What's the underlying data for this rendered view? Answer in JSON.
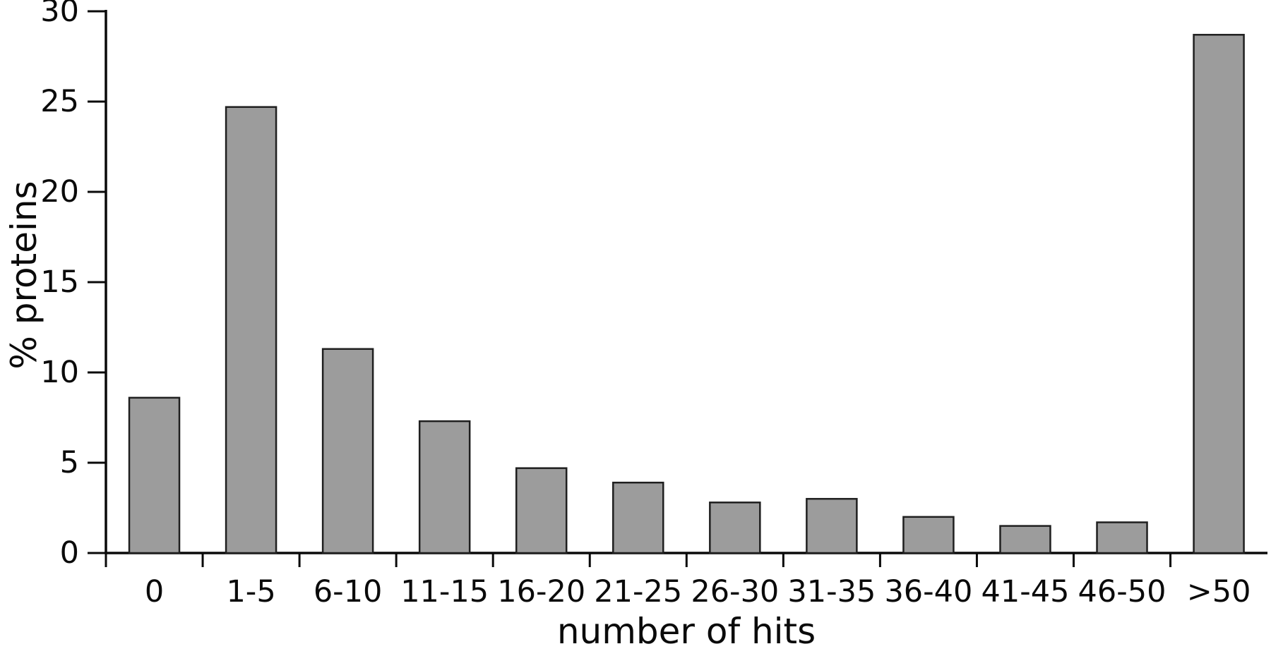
{
  "figure": {
    "background": "#ffffff"
  },
  "chart_data": {
    "type": "bar",
    "title": "",
    "xlabel": "number of hits",
    "ylabel": "% proteins",
    "categories": [
      "0",
      "1-5",
      "6-10",
      "11-15",
      "16-20",
      "21-25",
      "26-30",
      "31-35",
      "36-40",
      "41-45",
      "46-50",
      ">50"
    ],
    "values": [
      8.6,
      24.7,
      11.3,
      7.3,
      4.7,
      3.9,
      2.8,
      3.0,
      2.0,
      1.5,
      1.7,
      28.7
    ],
    "ylim": [
      0,
      30
    ],
    "yticks": [
      0,
      5,
      10,
      15,
      20,
      25,
      30
    ],
    "grid": false,
    "legend": null,
    "bar_fill": "#9c9c9c",
    "bar_stroke": "#1f1f1f",
    "axis_color": "#0a0a0a",
    "text_color": "#0a0a0a"
  }
}
